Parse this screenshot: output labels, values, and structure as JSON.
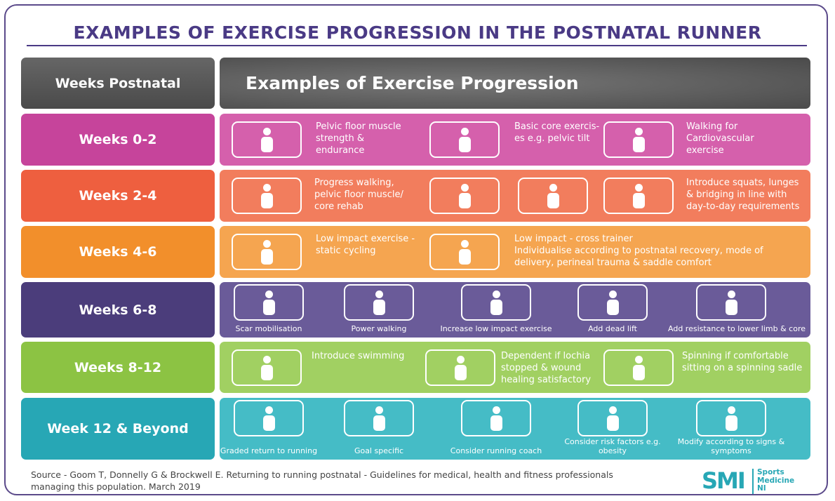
{
  "title": "EXAMPLES OF EXERCISE PROGRESSION IN THE POSTNATAL RUNNER",
  "header": {
    "weeks": "Weeks Postnatal",
    "examples": "Examples of Exercise Progression"
  },
  "rows": [
    {
      "label": "Weeks 0-2",
      "color": "#c6449b",
      "panel": "#d560ac",
      "items": [
        {
          "lines": [
            "Pelvic floor muscle",
            "strength &",
            "endurance"
          ]
        },
        {
          "lines": [
            "Basic core exercis-",
            "es e.g. pelvic tilt"
          ]
        },
        {
          "lines": [
            "Walking for",
            "Cardiovascular",
            "exercise"
          ]
        }
      ]
    },
    {
      "label": "Weeks 2-4",
      "color": "#ee5f3f",
      "panel": "#f27d5d",
      "items": [
        {
          "lines": [
            "Progress walking,",
            "pelvic floor muscle/",
            "core rehab"
          ]
        },
        {
          "lines": [
            "Introduce squats, lunges",
            "& bridging in line with",
            "day-to-day requirements"
          ]
        }
      ]
    },
    {
      "label": "Weeks 4-6",
      "color": "#f28f2b",
      "panel": "#f5a550",
      "items": [
        {
          "lines": [
            "Low impact exercise -",
            "static cycling"
          ]
        },
        {
          "lines": [
            "Low impact - cross trainer",
            "Individualise according to postnatal recovery, mode of",
            "delivery, perineal trauma & saddle comfort"
          ]
        }
      ]
    },
    {
      "label": "Weeks 6-8",
      "color": "#4b3d7b",
      "panel": "#6a5b99",
      "items": [
        {
          "lines": [
            "Scar mobilisation"
          ]
        },
        {
          "lines": [
            "Power walking"
          ]
        },
        {
          "lines": [
            "Increase low impact exercise"
          ]
        },
        {
          "lines": [
            "Add dead lift"
          ]
        },
        {
          "lines": [
            "Add resistance to lower limb & core"
          ]
        }
      ]
    },
    {
      "label": "Weeks 8-12",
      "color": "#8cc343",
      "panel": "#a1d062",
      "items": [
        {
          "lines": [
            "Introduce swimming"
          ]
        },
        {
          "lines": [
            "Dependent if lochia",
            "stopped & wound",
            "healing satisfactory"
          ]
        },
        {
          "lines": [
            "Spinning if comfortable",
            "sitting on a spinning sadle"
          ]
        }
      ]
    },
    {
      "label": "Week 12 & Beyond",
      "color": "#27a7b5",
      "panel": "#45bcc6",
      "items": [
        {
          "lines": [
            "Graded return to running"
          ]
        },
        {
          "lines": [
            "Goal specific"
          ]
        },
        {
          "lines": [
            "Consider running coach"
          ]
        },
        {
          "lines": [
            "Consider risk factors e.g.",
            "obesity"
          ]
        },
        {
          "lines": [
            "Modify according to signs &",
            "symptoms"
          ]
        }
      ]
    }
  ],
  "source": {
    "lines": [
      "Source - Goom T, Donnelly G & Brockwell E. Returning to running postnatal - Guidelines for medical, health and fitness professionals",
      "managing this population. March 2019"
    ]
  },
  "logo": {
    "mark": "SMI",
    "lines": [
      "Sports",
      "Medicine",
      "NI"
    ]
  }
}
